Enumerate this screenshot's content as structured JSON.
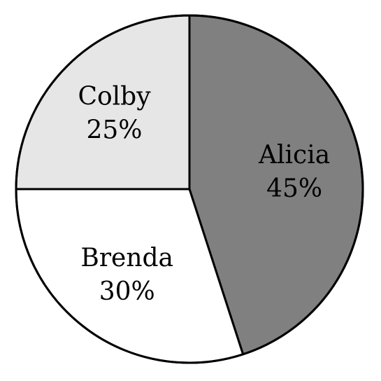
{
  "chart_data": {
    "type": "pie",
    "title": "",
    "start_angle_deg": 90,
    "direction": "clockwise",
    "slices": [
      {
        "name": "Alicia",
        "value": 45,
        "percent_label": "45%",
        "color": "#808080"
      },
      {
        "name": "Brenda",
        "value": 30,
        "percent_label": "30%",
        "color": "#ffffff"
      },
      {
        "name": "Colby",
        "value": 25,
        "percent_label": "25%",
        "color": "#e6e6e6"
      }
    ]
  }
}
